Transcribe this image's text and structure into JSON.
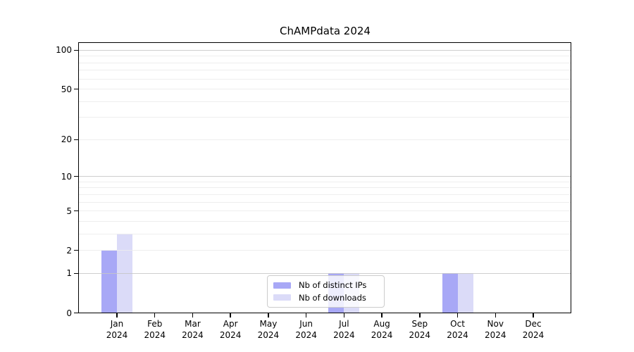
{
  "title": "ChAMPdata 2024",
  "chart_data": {
    "type": "bar",
    "title": "ChAMPdata 2024",
    "categories": [
      "Jan",
      "Feb",
      "Mar",
      "Apr",
      "May",
      "Jun",
      "Jul",
      "Aug",
      "Sep",
      "Oct",
      "Nov",
      "Dec"
    ],
    "year_label": "2024",
    "series": [
      {
        "name": "Nb of distinct IPs",
        "color": "#a8a8f6",
        "values": [
          2,
          0,
          0,
          0,
          0,
          0,
          1,
          0,
          0,
          1,
          0,
          0
        ]
      },
      {
        "name": "Nb of downloads",
        "color": "#dbdbf8",
        "values": [
          3,
          0,
          0,
          0,
          0,
          0,
          1,
          0,
          0,
          1,
          0,
          0
        ]
      }
    ],
    "y_axis": {
      "scale": "symlog",
      "transform": "log10(1+x)",
      "tick_values": [
        0,
        1,
        2,
        5,
        10,
        20,
        50,
        100
      ],
      "tick_labels": [
        "0",
        "1",
        "2",
        "5",
        "10",
        "20",
        "50",
        "100"
      ],
      "decade_gridlines": [
        1,
        10,
        100
      ],
      "minor_gridlines": [
        2,
        3,
        4,
        5,
        6,
        7,
        8,
        9,
        20,
        30,
        40,
        50,
        60,
        70,
        80,
        90
      ],
      "ylim": [
        0,
        115
      ]
    },
    "xlabel": "",
    "ylabel": "",
    "grid": true,
    "legend_position": "lower-center"
  },
  "colors": {
    "major_grid": "#c6c6c6",
    "minor_grid": "#ececec",
    "spine": "#000000",
    "background": "#ffffff",
    "legend_border": "#cccccc"
  }
}
